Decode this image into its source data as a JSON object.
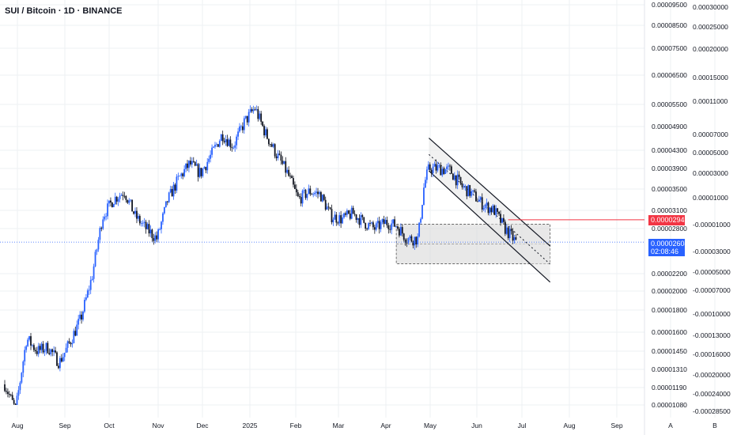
{
  "header": {
    "title": "SUI / Bitcoin · 1D · BINANCE"
  },
  "price_badges": {
    "reference_price": "0.00002941",
    "last_price": "0.00002604",
    "countdown": "02:08:46"
  },
  "chart_data": {
    "type": "candlestick",
    "symbol": "SUI / Bitcoin",
    "interval": "1D",
    "exchange": "BINANCE",
    "scale": "log",
    "grid": true,
    "x_ticks": [
      "Aug",
      "Sep",
      "Oct",
      "Nov",
      "Dec",
      "2025",
      "Feb",
      "Mar",
      "Apr",
      "May",
      "Jun",
      "Jul",
      "Aug",
      "Sep",
      "A",
      "B"
    ],
    "y_ticks": [
      "0.00009500",
      "0.00008500",
      "0.00007500",
      "0.00006500",
      "0.00005500",
      "0.00004900",
      "0.00004300",
      "0.00003900",
      "0.00003500",
      "0.00003100",
      "0.00002800",
      "0.00002200",
      "0.00002000",
      "0.00001800",
      "0.00001600",
      "0.00001450",
      "0.00001310",
      "0.00001190",
      "0.00001080"
    ],
    "y2_ticks": [
      "0.00030000",
      "0.00025000",
      "0.00020000",
      "0.00015000",
      "0.00011000",
      "0.00007000",
      "0.00005000",
      "0.00003000",
      "0.00001000",
      "-0.00001000",
      "-0.00003000",
      "-0.00005000",
      "-0.00007000",
      "-0.00010000",
      "-0.00013000",
      "-0.00016000",
      "-0.00020000",
      "-0.00024000",
      "-0.00028500"
    ],
    "close_path": [
      [
        "2024-07-29",
        1.21e-05
      ],
      [
        "2024-08-05",
        1.05e-05
      ],
      [
        "2024-08-12",
        1.55e-05
      ],
      [
        "2024-08-19",
        1.45e-05
      ],
      [
        "2024-08-26",
        1.48e-05
      ],
      [
        "2024-09-02",
        1.36e-05
      ],
      [
        "2024-09-09",
        1.52e-05
      ],
      [
        "2024-09-16",
        1.72e-05
      ],
      [
        "2024-09-23",
        2.15e-05
      ],
      [
        "2024-09-30",
        3e-05
      ],
      [
        "2024-10-07",
        3.3e-05
      ],
      [
        "2024-10-14",
        3.45e-05
      ],
      [
        "2024-10-21",
        3e-05
      ],
      [
        "2024-10-28",
        2.8e-05
      ],
      [
        "2024-11-04",
        2.65e-05
      ],
      [
        "2024-11-11",
        3.3e-05
      ],
      [
        "2024-11-18",
        3.7e-05
      ],
      [
        "2024-11-25",
        4e-05
      ],
      [
        "2024-12-02",
        3.8e-05
      ],
      [
        "2024-12-09",
        4.2e-05
      ],
      [
        "2024-12-16",
        4.7e-05
      ],
      [
        "2024-12-23",
        4.4e-05
      ],
      [
        "2024-12-30",
        5e-05
      ],
      [
        "2025-01-06",
        5.4e-05
      ],
      [
        "2025-01-13",
        4.7e-05
      ],
      [
        "2025-01-20",
        4.2e-05
      ],
      [
        "2025-01-27",
        3.8e-05
      ],
      [
        "2025-02-03",
        3.3e-05
      ],
      [
        "2025-02-10",
        3.45e-05
      ],
      [
        "2025-02-17",
        3.4e-05
      ],
      [
        "2025-02-24",
        3e-05
      ],
      [
        "2025-03-03",
        2.95e-05
      ],
      [
        "2025-03-10",
        3.05e-05
      ],
      [
        "2025-03-17",
        2.9e-05
      ],
      [
        "2025-03-24",
        2.8e-05
      ],
      [
        "2025-03-31",
        2.9e-05
      ],
      [
        "2025-04-07",
        2.85e-05
      ],
      [
        "2025-04-14",
        2.65e-05
      ],
      [
        "2025-04-21",
        2.65e-05
      ],
      [
        "2025-04-25",
        3.6e-05
      ],
      [
        "2025-04-28",
        3.9e-05
      ],
      [
        "2025-05-05",
        3.9e-05
      ],
      [
        "2025-05-12",
        3.85e-05
      ],
      [
        "2025-05-19",
        3.55e-05
      ],
      [
        "2025-05-26",
        3.4e-05
      ],
      [
        "2025-06-02",
        3.2e-05
      ],
      [
        "2025-06-09",
        3.1e-05
      ],
      [
        "2025-06-16",
        2.8e-05
      ],
      [
        "2025-06-23",
        2.604e-05
      ]
    ],
    "last_price": "0.00002604",
    "reference_price": "0.00002941",
    "annotations": [
      {
        "type": "rectangle",
        "from": "2025-04-07",
        "to": "2025-07-15",
        "top": 2.87e-05,
        "bottom": 2.32e-05
      },
      {
        "type": "channel",
        "start": "2025-04-28",
        "end": "2025-07-15",
        "upper": [
          4.6e-05,
          2.55e-05
        ],
        "lower": [
          3.85e-05,
          2.1e-05
        ]
      },
      {
        "type": "horizontal_ray",
        "price": 2.941e-05,
        "from": "2025-06-18"
      }
    ]
  },
  "colors": {
    "candles_up": "#2962ff",
    "candles_down": "#131722",
    "ref_line": "#f23645",
    "last_line": "#2962ff",
    "box_fill": "#d9d9d9",
    "grid": "#eef0f3"
  }
}
